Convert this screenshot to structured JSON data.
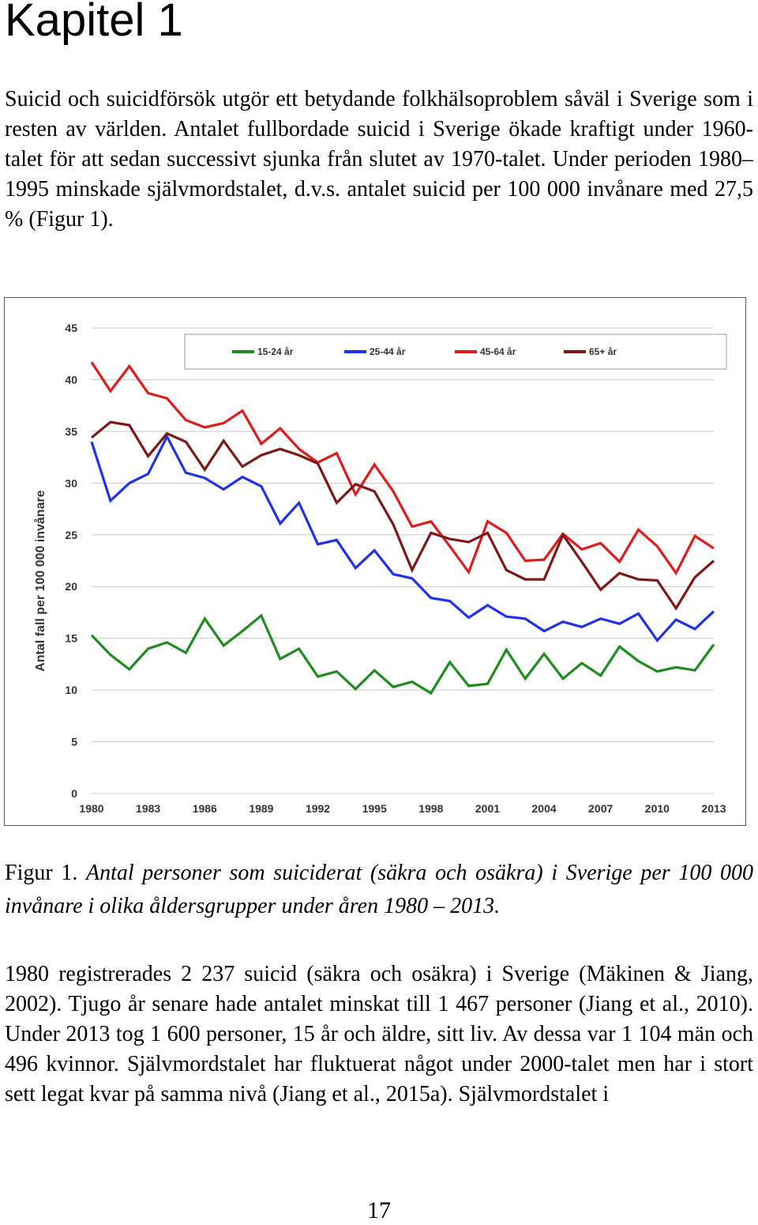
{
  "heading": "Kapitel 1",
  "paragraph1": "Suicid och suicidförsök utgör ett betydande folkhälsoproblem såväl i Sverige som i resten av världen. Antalet fullbordade suicid i Sverige ökade kraftigt under 1960-talet för att sedan successivt sjunka från slutet av 1970-talet. Under perioden 1980–1995 minskade självmordstalet, d.v.s. antalet suicid per 100 000 invånare med 27,5 % (Figur 1).",
  "figure_caption": {
    "label": "Figur 1.",
    "text": "Antal personer som suiciderat (säkra och osäkra) i Sverige per 100 000 invånare i olika åldersgrupper under åren 1980 – 2013."
  },
  "paragraph2": "1980 registrerades 2 237 suicid (säkra och osäkra) i Sverige (Mäkinen & Jiang, 2002). Tjugo år senare hade antalet minskat till 1 467 personer (Jiang et al., 2010). Under 2013 tog 1 600 personer, 15 år och äldre, sitt liv. Av dessa var 1 104 män och 496 kvinnor. Självmordstalet har fluktuerat något under 2000-talet men har i stort sett legat kvar på samma nivå (Jiang et al., 2015a). Självmordstalet i",
  "page_number": "17",
  "chart_data": {
    "type": "line",
    "title": "",
    "xlabel": "",
    "ylabel": "Antal fall per 100 000 invånare",
    "x": [
      1980,
      1981,
      1982,
      1983,
      1984,
      1985,
      1986,
      1987,
      1988,
      1989,
      1990,
      1991,
      1992,
      1993,
      1994,
      1995,
      1996,
      1997,
      1998,
      1999,
      2000,
      2001,
      2002,
      2003,
      2004,
      2005,
      2006,
      2007,
      2008,
      2009,
      2010,
      2011,
      2012,
      2013
    ],
    "x_ticks": [
      "1980",
      "1983",
      "1986",
      "1989",
      "1992",
      "1995",
      "1998",
      "2001",
      "2004",
      "2007",
      "2010",
      "2013"
    ],
    "x_tick_values": [
      1980,
      1983,
      1986,
      1989,
      1992,
      1995,
      1998,
      2001,
      2004,
      2007,
      2010,
      2013
    ],
    "y_ticks": [
      "0",
      "5",
      "10",
      "15",
      "20",
      "25",
      "30",
      "35",
      "40",
      "45"
    ],
    "y_tick_values": [
      0,
      5,
      10,
      15,
      20,
      25,
      30,
      35,
      40,
      45
    ],
    "ylim": [
      0,
      45
    ],
    "legend_position": "top",
    "series": [
      {
        "name": "15-24 år",
        "color": "#1e8c1e",
        "values": [
          15.3,
          13.4,
          12.0,
          14.0,
          14.6,
          13.6,
          16.9,
          14.3,
          15.7,
          17.2,
          13.0,
          14.0,
          11.3,
          11.8,
          10.1,
          11.9,
          10.3,
          10.8,
          9.7,
          12.7,
          10.4,
          10.6,
          13.9,
          11.1,
          13.5,
          11.1,
          12.6,
          11.4,
          14.2,
          12.8,
          11.8,
          12.2,
          11.9,
          14.4
        ]
      },
      {
        "name": "25-44 år",
        "color": "#1f32e6",
        "values": [
          34.0,
          28.3,
          30.0,
          30.9,
          34.5,
          31.0,
          30.5,
          29.4,
          30.6,
          29.7,
          26.1,
          28.1,
          24.1,
          24.5,
          21.8,
          23.5,
          21.2,
          20.8,
          18.9,
          18.6,
          17.0,
          18.2,
          17.1,
          16.9,
          15.7,
          16.6,
          16.1,
          16.9,
          16.4,
          17.4,
          14.8,
          16.8,
          15.9,
          17.6
        ]
      },
      {
        "name": "45-64 år",
        "color": "#e01b1b",
        "values": [
          41.7,
          38.9,
          41.3,
          38.7,
          38.2,
          36.1,
          35.4,
          35.8,
          37.0,
          33.8,
          35.3,
          33.3,
          32.0,
          32.9,
          28.9,
          31.8,
          29.2,
          25.8,
          26.3,
          23.9,
          21.4,
          26.3,
          25.2,
          22.5,
          22.6,
          25.1,
          23.6,
          24.2,
          22.4,
          25.5,
          23.9,
          21.3,
          24.9,
          23.7
        ]
      },
      {
        "name": "65+ år",
        "color": "#7e1717",
        "values": [
          34.4,
          35.9,
          35.6,
          32.6,
          34.8,
          34.0,
          31.3,
          34.1,
          31.6,
          32.7,
          33.3,
          32.7,
          31.9,
          28.1,
          29.9,
          29.2,
          26.0,
          21.6,
          25.2,
          24.6,
          24.3,
          25.2,
          21.6,
          20.7,
          20.7,
          25.0,
          22.4,
          19.7,
          21.3,
          20.7,
          20.6,
          17.9,
          20.9,
          22.5
        ]
      }
    ]
  }
}
